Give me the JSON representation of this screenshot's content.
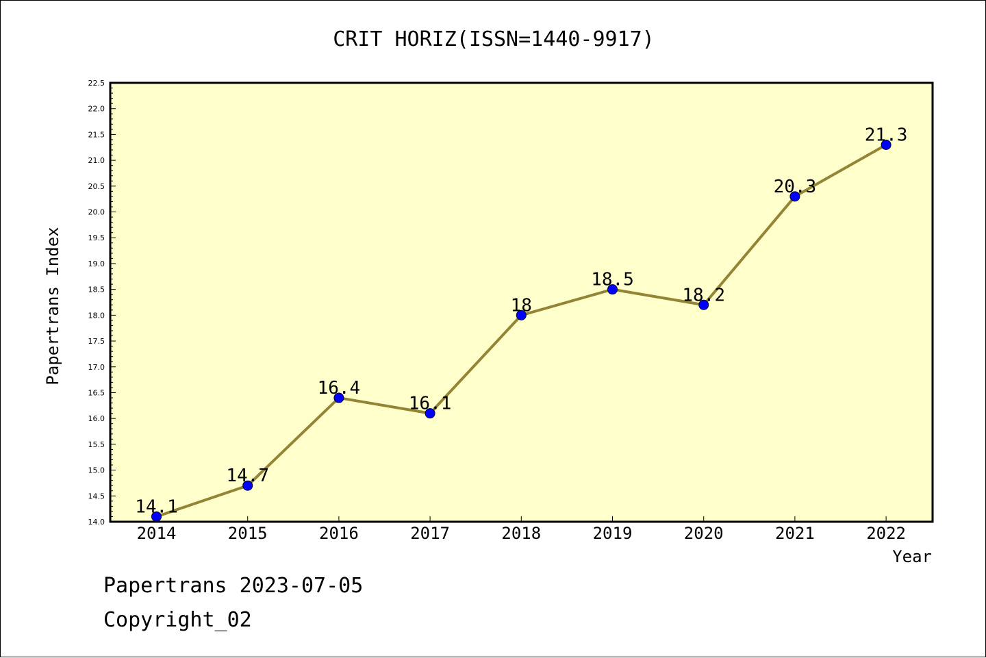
{
  "chart_data": {
    "type": "line",
    "title": "CRIT HORIZ(ISSN=1440-9917)",
    "xlabel": "Year",
    "ylabel": "Papertrans Index",
    "categories": [
      "2014",
      "2015",
      "2016",
      "2017",
      "2018",
      "2019",
      "2020",
      "2021",
      "2022"
    ],
    "series": [
      {
        "values": [
          14.1,
          14.7,
          16.4,
          16.1,
          18.0,
          18.5,
          18.2,
          20.3,
          21.3
        ],
        "labels": [
          "14.1",
          "14.7",
          "16.4",
          "16.1",
          "18",
          "18.5",
          "18.2",
          "20.3",
          "21.3"
        ]
      }
    ],
    "ylim": [
      14.0,
      22.5
    ],
    "yticks": [
      "14.0",
      "14.5",
      "15.0",
      "15.5",
      "16.0",
      "16.5",
      "17.0",
      "17.5",
      "18.0",
      "18.5",
      "19.0",
      "19.5",
      "20.0",
      "20.5",
      "21.0",
      "21.5",
      "22.0",
      "22.5"
    ],
    "grid": false,
    "colors": {
      "plot_background": "#ffffcc",
      "line": "#948536",
      "marker": "#0000ff"
    }
  },
  "footer": {
    "line1": "Papertrans 2023-07-05",
    "line2": "Copyright_02"
  }
}
